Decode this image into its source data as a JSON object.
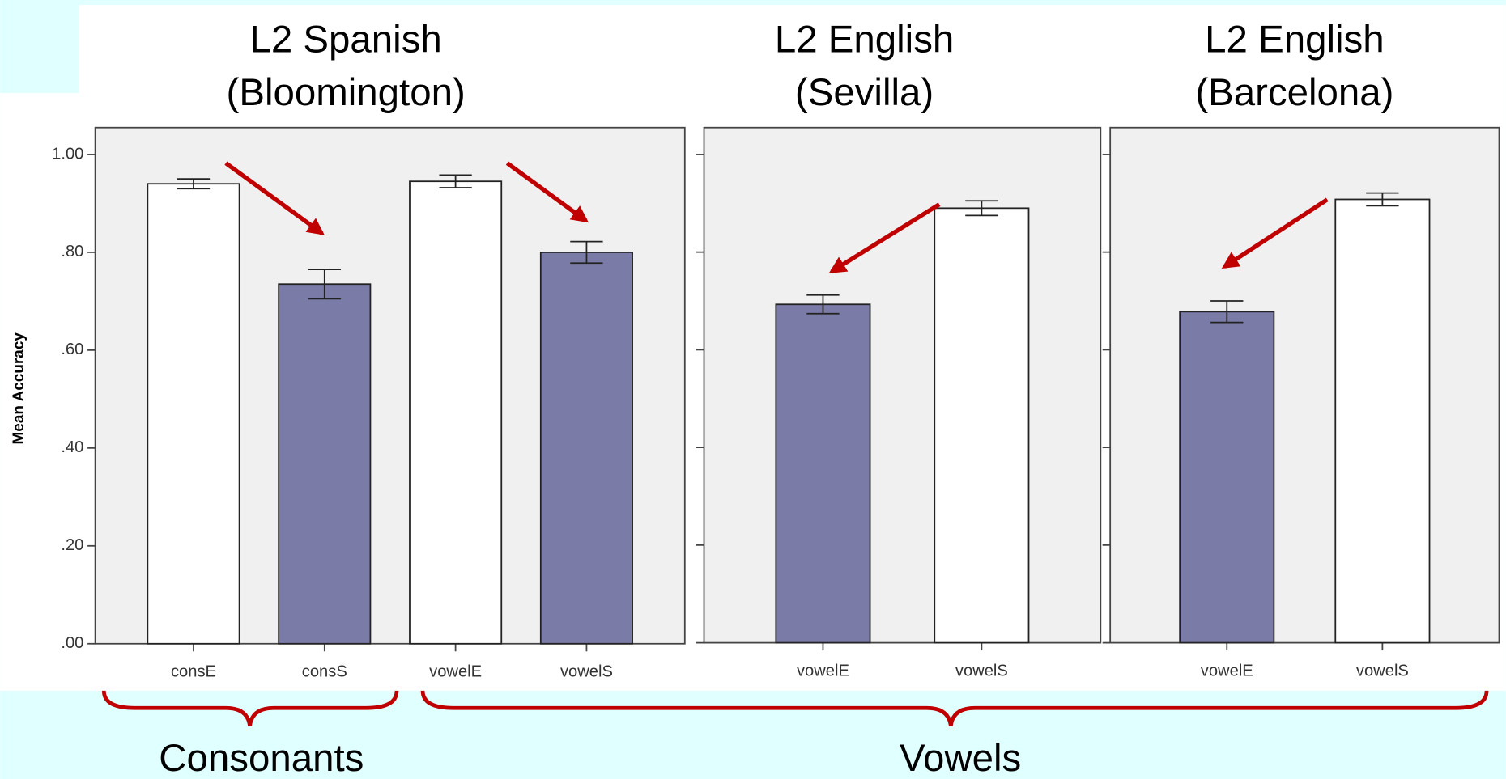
{
  "chart_data": [
    {
      "type": "bar",
      "title": "L2 Spanish",
      "subtitle": "(Bloomington)",
      "y_label": "Mean Accuracy",
      "categories": [
        "consE",
        "consS",
        "vowelE",
        "vowelS"
      ],
      "values": [
        0.94,
        0.735,
        0.945,
        0.8
      ],
      "errors": [
        0.01,
        0.03,
        0.013,
        0.022
      ],
      "colors": [
        "#ffffff",
        "#7b7ba8",
        "#ffffff",
        "#7b7ba8"
      ],
      "ylim": [
        0,
        1.0
      ],
      "yticks": [
        {
          "value": 0,
          "label": ".00"
        },
        {
          "value": 0.2,
          "label": ".20"
        },
        {
          "value": 0.4,
          "label": ".40"
        },
        {
          "value": 0.6,
          "label": ".60"
        },
        {
          "value": 0.8,
          "label": ".80"
        },
        {
          "value": 1.0,
          "label": "1.00"
        }
      ]
    },
    {
      "type": "bar",
      "title": "L2 English",
      "subtitle": "(Sevilla)",
      "categories": [
        "vowelE",
        "vowelS"
      ],
      "values": [
        0.693,
        0.89
      ],
      "errors": [
        0.019,
        0.015
      ],
      "colors": [
        "#7b7ba8",
        "#ffffff"
      ],
      "ylim": [
        0,
        1.0
      ],
      "yticks": [
        0,
        0.2,
        0.4,
        0.6,
        0.8,
        1.0
      ]
    },
    {
      "type": "bar",
      "title": "L2 English",
      "subtitle": "(Barcelona)",
      "categories": [
        "vowelE",
        "vowelS"
      ],
      "values": [
        0.678,
        0.908
      ],
      "errors": [
        0.022,
        0.013
      ],
      "colors": [
        "#7b7ba8",
        "#ffffff"
      ],
      "ylim": [
        0,
        1.0
      ],
      "yticks": [
        0,
        0.2,
        0.4,
        0.6,
        0.8,
        1.0
      ]
    }
  ],
  "annotations": {
    "left": "Consonants",
    "right": "Vowels"
  }
}
